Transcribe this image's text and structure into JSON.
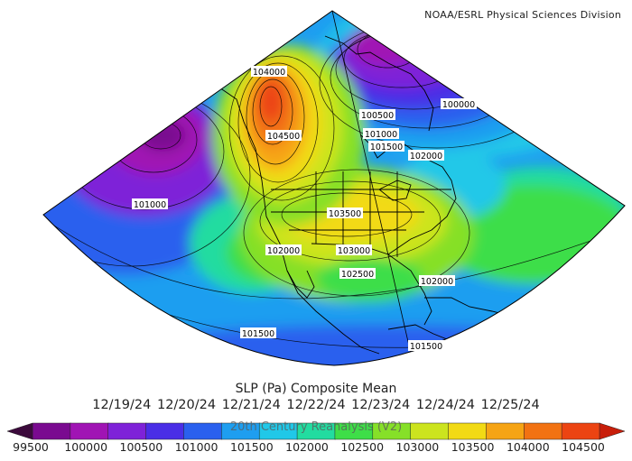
{
  "header": {
    "credit": "NOAA/ESRL Physical Sciences Division"
  },
  "caption": {
    "title": "SLP (Pa) Composite Mean",
    "dates": "12/19/24  12/20/24  12/21/24  12/22/24  12/23/24  12/24/24  12/25/24",
    "reanalysis": "20th Century Reanalysis (V2)"
  },
  "map": {
    "variable": "SLP (Pa)",
    "contour_labels": [
      {
        "id": "hi-104000",
        "text": "104000"
      },
      {
        "id": "hi-104500",
        "text": "104500"
      },
      {
        "id": "ne-100000",
        "text": "100000"
      },
      {
        "id": "ne-100500",
        "text": "100500"
      },
      {
        "id": "ne-101000",
        "text": "101000"
      },
      {
        "id": "ne-101500",
        "text": "101500"
      },
      {
        "id": "ne-102000",
        "text": "102000"
      },
      {
        "id": "pac-101000",
        "text": "101000"
      },
      {
        "id": "us-103500",
        "text": "103500"
      },
      {
        "id": "us-103000",
        "text": "103000"
      },
      {
        "id": "us-102500",
        "text": "102500"
      },
      {
        "id": "w-102000",
        "text": "102000"
      },
      {
        "id": "se-102000",
        "text": "102000"
      },
      {
        "id": "sw-101500",
        "text": "101500"
      },
      {
        "id": "s-101500",
        "text": "101500"
      }
    ]
  },
  "colorbar": {
    "min_color": "#3c0a3c",
    "max_color": "#c81e0a",
    "bins": [
      {
        "color": "#7a0a90"
      },
      {
        "color": "#a014b4"
      },
      {
        "color": "#7e22d8"
      },
      {
        "color": "#4a2ee6"
      },
      {
        "color": "#2a60ee"
      },
      {
        "color": "#1e9ef0"
      },
      {
        "color": "#20c8e8"
      },
      {
        "color": "#22dca0"
      },
      {
        "color": "#3ede48"
      },
      {
        "color": "#86e028"
      },
      {
        "color": "#cce41e"
      },
      {
        "color": "#f2da14"
      },
      {
        "color": "#f6a414"
      },
      {
        "color": "#f27212"
      },
      {
        "color": "#ec4412"
      }
    ],
    "labels": [
      "99500",
      "100000",
      "100500",
      "101000",
      "101500",
      "102000",
      "102500",
      "103000",
      "103500",
      "104000",
      "104500"
    ]
  }
}
